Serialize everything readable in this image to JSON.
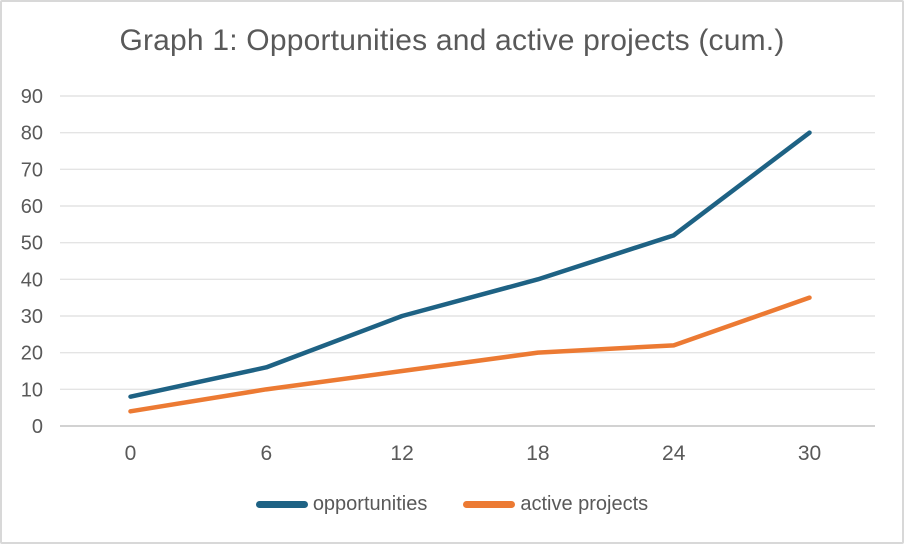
{
  "chart_data": {
    "type": "line",
    "title": "Graph 1: Opportunities and active projects (cum.)",
    "categories": [
      "0",
      "6",
      "12",
      "18",
      "24",
      "30"
    ],
    "series": [
      {
        "name": "opportunities",
        "color": "#1E6284",
        "values": [
          8,
          16,
          30,
          40,
          52,
          80
        ]
      },
      {
        "name": "active projects",
        "color": "#EC7A33",
        "values": [
          4,
          10,
          15,
          20,
          22,
          35
        ]
      }
    ],
    "xlabel": "",
    "ylabel": "",
    "ylim": [
      0,
      90
    ],
    "yticks": [
      0,
      10,
      20,
      30,
      40,
      50,
      60,
      70,
      80,
      90
    ],
    "grid": "horizontal",
    "legend_position": "bottom",
    "colors": {
      "title_text": "#595959",
      "axis_text": "#595959",
      "gridline": "#e4e4e4",
      "axis_line": "#d2d2d2",
      "background": "#ffffff",
      "border": "#d8d8d8"
    }
  }
}
